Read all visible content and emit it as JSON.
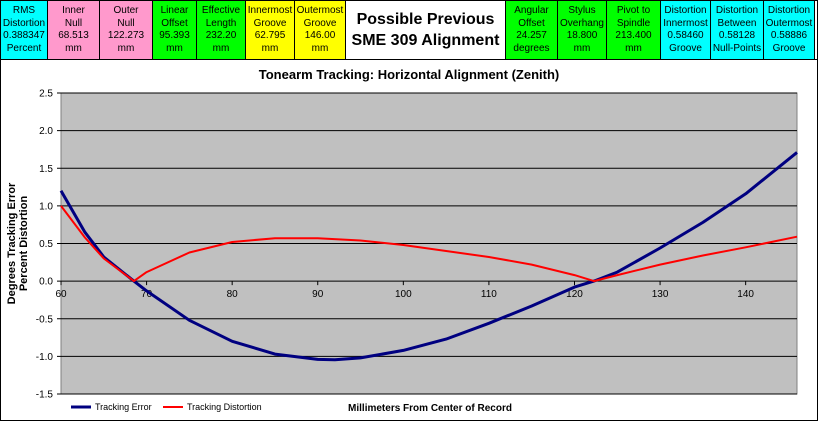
{
  "header": {
    "groups": [
      {
        "color": "#00ffff",
        "labels": [
          "RMS\nDistortion",
          "0.388347\nPercent"
        ]
      },
      {
        "color": "#ff99cc",
        "labels": [
          "Inner\nNull",
          "68.513\nmm"
        ]
      },
      {
        "color": "#ff99cc",
        "labels": [
          "Outer\nNull",
          "122.273\nmm"
        ]
      },
      {
        "color": "#00ff00",
        "labels": [
          "Linear\nOffset",
          "95.393\nmm"
        ]
      },
      {
        "color": "#00ff00",
        "labels": [
          "Effective\nLength",
          "232.20\nmm"
        ]
      },
      {
        "color": "#ffff00",
        "labels": [
          "Innermost\nGroove",
          "62.795\nmm"
        ]
      },
      {
        "color": "#ffff00",
        "labels": [
          "Outermost\nGroove",
          "146.00\nmm"
        ]
      }
    ],
    "title_line1": "Possible  Previous",
    "title_line2": "SME  309  Alignment",
    "groups_right": [
      {
        "color": "#00ff00",
        "labels": [
          "Angular\nOffset",
          "24.257\ndegrees"
        ]
      },
      {
        "color": "#00ff00",
        "labels": [
          "Stylus\nOverhang",
          "18.800\nmm"
        ]
      },
      {
        "color": "#00ff00",
        "labels": [
          "Pivot to\nSpindle",
          "213.400\nmm"
        ]
      },
      {
        "color": "#00ffff",
        "labels": [
          "Distortion\nInnermost",
          "0.58460\nGroove"
        ]
      },
      {
        "color": "#00ffff",
        "labels": [
          "Distortion\nBetween",
          "0.58128\nNull-Points"
        ]
      },
      {
        "color": "#00ffff",
        "labels": [
          "Distortion\nOutermost",
          "0.58886\nGroove"
        ]
      }
    ]
  },
  "chart_data": {
    "type": "line",
    "title": "Tonearm Tracking:  Horizontal Alignment (Zenith)",
    "xlabel": "Millimeters From Center of Record",
    "ylabel": "Degrees Tracking Error\nPercent Distortion",
    "xlim": [
      60,
      146
    ],
    "ylim": [
      -1.5,
      2.5
    ],
    "x_ticks": [
      60,
      70,
      80,
      90,
      100,
      110,
      120,
      130,
      140
    ],
    "y_ticks": [
      2.5,
      2.0,
      1.5,
      1.0,
      0.5,
      0.0,
      -0.5,
      -1.0,
      -1.5
    ],
    "x_tick_labels": [
      "60",
      "70",
      "80",
      "90",
      "100",
      "110",
      "120",
      "130",
      "140"
    ],
    "y_tick_labels": [
      "2.5",
      "2.0",
      "1.5",
      "1.0",
      "0.5",
      "0.0",
      "-0.5",
      "-1.0",
      "-1.5"
    ],
    "grid": true,
    "plot_background": "#c0c0c0",
    "legend_position": "bottom-left",
    "series": [
      {
        "name": "Tracking Error",
        "color": "#000080",
        "x": [
          60,
          62.795,
          65,
          68.513,
          70,
          75,
          80,
          85,
          90,
          92,
          95,
          100,
          105,
          110,
          115,
          120,
          122.273,
          125,
          130,
          135,
          140,
          146
        ],
        "y": [
          1.2,
          0.65,
          0.32,
          0.0,
          -0.13,
          -0.52,
          -0.8,
          -0.97,
          -1.04,
          -1.045,
          -1.02,
          -0.92,
          -0.77,
          -0.56,
          -0.33,
          -0.08,
          0.0,
          0.12,
          0.44,
          0.78,
          1.16,
          1.71
        ]
      },
      {
        "name": "Tracking Distortion",
        "color": "#ff0000",
        "x": [
          60,
          62.795,
          65,
          68.513,
          70,
          75,
          80,
          85,
          90,
          95,
          100,
          105,
          110,
          115,
          120,
          122.273,
          125,
          130,
          135,
          140,
          146
        ],
        "y": [
          1.0,
          0.58,
          0.3,
          0.0,
          0.12,
          0.38,
          0.52,
          0.57,
          0.57,
          0.54,
          0.48,
          0.4,
          0.32,
          0.22,
          0.08,
          0.0,
          0.08,
          0.22,
          0.34,
          0.45,
          0.59
        ]
      }
    ]
  }
}
